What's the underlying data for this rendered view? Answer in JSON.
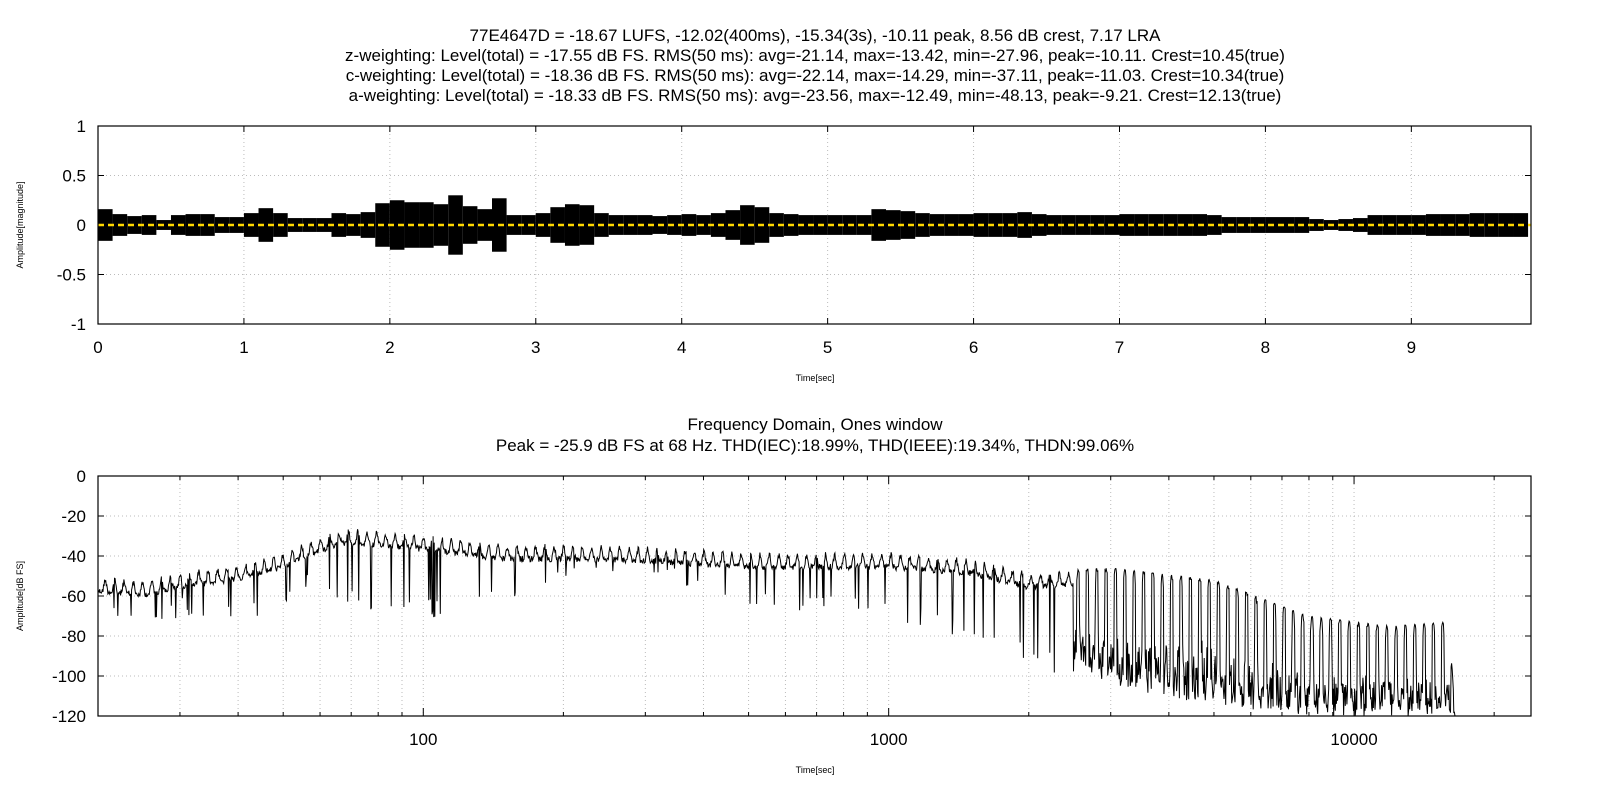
{
  "chart_data": [
    {
      "type": "line",
      "title_lines": [
        "77E4647D = -18.67 LUFS, -12.02(400ms), -15.34(3s), -10.11 peak, 8.56 dB crest, 7.17 LRA",
        "z-weighting: Level(total) = -17.55 dB FS. RMS(50 ms): avg=-21.14, max=-13.42, min=-27.96, peak=-10.11. Crest=10.45(true)",
        "c-weighting: Level(total) = -18.36 dB FS. RMS(50 ms): avg=-22.14, max=-14.29, min=-37.11, peak=-11.03. Crest=10.34(true)",
        "a-weighting: Level(total) = -18.33 dB FS. RMS(50 ms): avg=-23.56, max=-12.49, min=-48.13, peak=-9.21. Crest=12.13(true)"
      ],
      "xlabel": "Time[sec]",
      "ylabel": "Amplitude[magnitude]",
      "xlim": [
        0,
        9.82
      ],
      "ylim": [
        -1,
        1
      ],
      "xticks": [
        "0",
        "1",
        "2",
        "3",
        "4",
        "5",
        "6",
        "7",
        "8",
        "9"
      ],
      "yticks": [
        "1",
        "0.5",
        "0",
        "-0.5",
        "-1"
      ],
      "grid": true,
      "envelope_bin_sec": 0.1,
      "envelope_amplitude": [
        0.16,
        0.11,
        0.09,
        0.1,
        0.05,
        0.1,
        0.11,
        0.11,
        0.08,
        0.08,
        0.12,
        0.17,
        0.12,
        0.07,
        0.07,
        0.07,
        0.12,
        0.11,
        0.13,
        0.22,
        0.25,
        0.23,
        0.23,
        0.21,
        0.3,
        0.19,
        0.16,
        0.27,
        0.1,
        0.1,
        0.12,
        0.18,
        0.21,
        0.2,
        0.12,
        0.1,
        0.1,
        0.1,
        0.09,
        0.1,
        0.11,
        0.1,
        0.12,
        0.15,
        0.2,
        0.18,
        0.12,
        0.11,
        0.1,
        0.1,
        0.1,
        0.1,
        0.1,
        0.16,
        0.15,
        0.14,
        0.12,
        0.11,
        0.11,
        0.11,
        0.12,
        0.12,
        0.12,
        0.13,
        0.11,
        0.1,
        0.1,
        0.1,
        0.1,
        0.1,
        0.11,
        0.11,
        0.11,
        0.11,
        0.11,
        0.11,
        0.1,
        0.08,
        0.08,
        0.08,
        0.08,
        0.08,
        0.08,
        0.06,
        0.05,
        0.06,
        0.07,
        0.1,
        0.1,
        0.1,
        0.1,
        0.11,
        0.11,
        0.11,
        0.12,
        0.12,
        0.12,
        0.12
      ],
      "dc_line": {
        "value": 0,
        "color": "#ffd700"
      },
      "waveform_color": "#000000"
    },
    {
      "type": "line",
      "title_lines": [
        "Frequency Domain, Ones window",
        "Peak = -25.9 dB FS at 68 Hz. THD(IEC):18.99%, THD(IEEE):19.34%, THDN:99.06%"
      ],
      "xlabel": "Time[sec]",
      "ylabel": "Amplitude[dB FS]",
      "xscale": "log",
      "xlim": [
        20,
        24000
      ],
      "ylim": [
        -120,
        0
      ],
      "xticks": [
        {
          "value": 100,
          "label": "100"
        },
        {
          "value": 1000,
          "label": "1000"
        },
        {
          "value": 10000,
          "label": "10000"
        }
      ],
      "yticks": [
        "0",
        "-20",
        "-40",
        "-60",
        "-80",
        "-100",
        "-120"
      ],
      "grid": true,
      "comb_period_decades": 0.0201,
      "spectrum_trend": [
        {
          "f": 20,
          "peak": -50,
          "floor": -60
        },
        {
          "f": 25,
          "peak": -52,
          "floor": -70
        },
        {
          "f": 30,
          "peak": -48,
          "floor": -60
        },
        {
          "f": 40,
          "peak": -44,
          "floor": -62
        },
        {
          "f": 50,
          "peak": -38,
          "floor": -58
        },
        {
          "f": 60,
          "peak": -30,
          "floor": -45
        },
        {
          "f": 68,
          "peak": -25.9,
          "floor": -55
        },
        {
          "f": 100,
          "peak": -29,
          "floor": -62
        },
        {
          "f": 150,
          "peak": -34,
          "floor": -55
        },
        {
          "f": 200,
          "peak": -34,
          "floor": -40
        },
        {
          "f": 300,
          "peak": -35,
          "floor": -42
        },
        {
          "f": 500,
          "peak": -38,
          "floor": -55
        },
        {
          "f": 1000,
          "peak": -38,
          "floor": -62
        },
        {
          "f": 1500,
          "peak": -41,
          "floor": -72
        },
        {
          "f": 2000,
          "peak": -48,
          "floor": -82
        },
        {
          "f": 3000,
          "peak": -46,
          "floor": -105
        },
        {
          "f": 5000,
          "peak": -52,
          "floor": -115
        },
        {
          "f": 8000,
          "peak": -70,
          "floor": -120
        },
        {
          "f": 12000,
          "peak": -75,
          "floor": -120
        },
        {
          "f": 16000,
          "peak": -73,
          "floor": -120
        },
        {
          "f": 16500,
          "peak": -120,
          "floor": -120
        },
        {
          "f": 24000,
          "peak": -120,
          "floor": -120
        }
      ]
    }
  ]
}
